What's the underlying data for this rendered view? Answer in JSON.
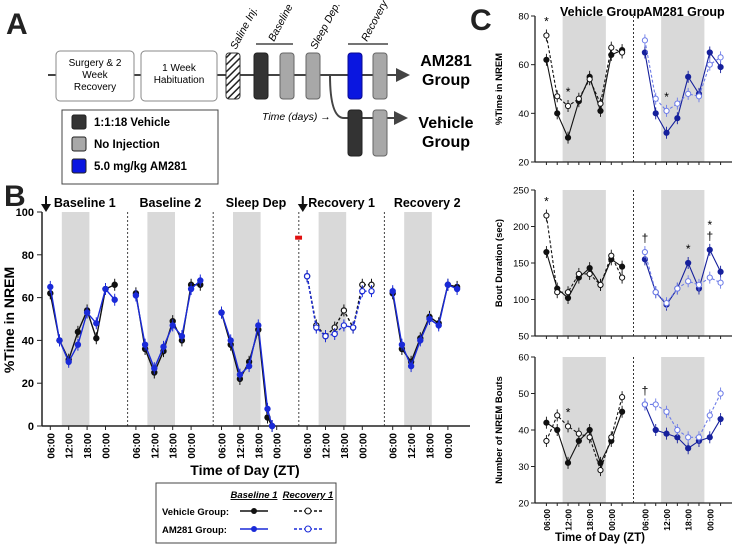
{
  "figure": {
    "panel_a": {
      "letter": "A",
      "boxes": [
        "Surgery & 2 Week Recovery",
        "1 Week Habituation"
      ],
      "labels": {
        "saline": "Saline Inj.",
        "baseline": "Baseline",
        "sleep_dep": "Sleep Dep.",
        "recovery": "Recovery"
      },
      "time_label": "Time (days) →",
      "groups": [
        "AM281 Group",
        "Vehicle Group"
      ],
      "legend": [
        {
          "label": "1:1:18 Vehicle",
          "color": "#333333"
        },
        {
          "label": "No Injection",
          "color": "#a8a8a8"
        },
        {
          "label": "5.0 mg/kg AM281",
          "color": "#0a16e0"
        }
      ]
    },
    "panel_b": {
      "letter": "B"
    },
    "panel_c": {
      "letter": "C"
    },
    "legend_b": {
      "col1": "Baseline 1",
      "col2": "Recovery 1",
      "rows": [
        "Vehicle Group:",
        "AM281 Group:"
      ]
    }
  },
  "chart_data": [
    {
      "id": "B",
      "type": "line",
      "ylabel": "%Time in NREM",
      "xlabel": "Time of Day (ZT)",
      "ylim": [
        0,
        100
      ],
      "yticks": [
        0,
        20,
        40,
        60,
        80,
        100
      ],
      "xtick_labels": [
        "06:00",
        "12:00",
        "18:00",
        "00:00"
      ],
      "dark_period": "12:00–00:00",
      "sleep_dep_marker": "06:00",
      "x_hours": [
        0,
        2,
        4,
        6,
        8,
        10,
        12,
        14,
        16,
        18,
        20
      ],
      "panels": [
        {
          "title": "Baseline 1",
          "vehicle": [
            62,
            40,
            31,
            44,
            54,
            41,
            64,
            66
          ],
          "am281": [
            65,
            40,
            30,
            38,
            53,
            48,
            64,
            59
          ],
          "vehicle_x": [
            0,
            2,
            4,
            6,
            8,
            10,
            12,
            14
          ],
          "am281_x": [
            0,
            2,
            4,
            6,
            8,
            10,
            12,
            14
          ]
        },
        {
          "title": "Baseline 2",
          "vehicle": [
            62,
            36,
            25,
            35,
            49,
            40,
            66,
            66
          ],
          "am281": [
            61,
            38,
            27,
            37,
            47,
            42,
            64,
            68
          ],
          "vehicle_x": [
            0,
            2,
            4,
            6,
            8,
            10,
            12,
            14
          ],
          "am281_x": [
            0,
            2,
            4,
            6,
            8,
            10,
            12,
            14
          ]
        },
        {
          "title": "Sleep Dep",
          "vehicle": [
            53,
            38,
            22,
            30,
            45,
            4,
            0
          ],
          "am281": [
            53,
            40,
            24,
            28,
            47,
            8,
            0
          ],
          "vehicle_x": [
            0,
            2,
            4,
            6,
            8,
            10,
            11
          ],
          "am281_x": [
            0,
            2,
            4,
            6,
            8,
            10,
            11
          ]
        },
        {
          "title": "Recovery 1",
          "vehicle": [
            70,
            47,
            42,
            46,
            54,
            46,
            66,
            66
          ],
          "am281": [
            70,
            46,
            42,
            43,
            47,
            46,
            63,
            63
          ],
          "vehicle_x": [
            0,
            2,
            4,
            6,
            8,
            10,
            12,
            14
          ],
          "am281_x": [
            0,
            2,
            4,
            6,
            8,
            10,
            12,
            14
          ]
        },
        {
          "title": "Recovery 2",
          "vehicle": [
            62,
            36,
            30,
            41,
            51,
            48,
            66,
            65
          ],
          "am281": [
            63,
            38,
            28,
            40,
            50,
            47,
            66,
            64
          ],
          "vehicle_x": [
            0,
            2,
            4,
            6,
            8,
            10,
            12,
            14
          ],
          "am281_x": [
            0,
            2,
            4,
            6,
            8,
            10,
            12,
            14
          ]
        }
      ]
    },
    {
      "id": "C",
      "type": "line",
      "xlabel": "Time of Day (ZT)",
      "xtick_labels": [
        "06:00",
        "12:00",
        "18:00",
        "00:00",
        "06:00",
        "12:00",
        "18:00",
        "00:00"
      ],
      "group_titles": [
        "Vehicle Group",
        "AM281 Group"
      ],
      "subplots": [
        {
          "ylabel": "%Time in NREM",
          "ylim": [
            20,
            80
          ],
          "yticks": [
            20,
            40,
            60,
            80
          ],
          "vehicle_baseline": [
            62,
            40,
            30,
            45,
            55,
            41,
            64,
            66
          ],
          "vehicle_recovery": [
            72,
            47,
            43,
            46,
            54,
            44,
            67,
            65
          ],
          "am281_baseline": [
            65,
            40,
            32,
            38,
            55,
            48,
            65,
            59
          ],
          "am281_recovery": [
            70,
            46,
            41,
            44,
            48,
            47,
            60,
            63
          ],
          "annotations": [
            {
              "text": "*",
              "group": "vehicle",
              "index": 0
            },
            {
              "text": "*",
              "group": "vehicle",
              "index": 2
            },
            {
              "text": "*",
              "group": "am281",
              "index": 2
            }
          ]
        },
        {
          "ylabel": "Bout Duration (sec)",
          "ylim": [
            50,
            250
          ],
          "yticks": [
            50,
            100,
            150,
            200,
            250
          ],
          "vehicle_baseline": [
            165,
            115,
            102,
            130,
            143,
            120,
            155,
            145
          ],
          "vehicle_recovery": [
            215,
            110,
            110,
            135,
            135,
            120,
            160,
            130
          ],
          "am281_baseline": [
            155,
            110,
            93,
            115,
            150,
            115,
            168,
            138
          ],
          "am281_recovery": [
            165,
            110,
            95,
            115,
            125,
            120,
            130,
            123
          ],
          "annotations": [
            {
              "text": "*",
              "group": "vehicle",
              "index": 0
            },
            {
              "text": "†",
              "group": "am281",
              "index": 0
            },
            {
              "text": "*",
              "group": "am281",
              "index": 4
            },
            {
              "text": "†",
              "group": "am281",
              "index": 6
            },
            {
              "text": "*",
              "group": "am281",
              "index": 6
            }
          ]
        },
        {
          "ylabel": "Number of NREM Bouts",
          "ylim": [
            20,
            60
          ],
          "yticks": [
            20,
            30,
            40,
            50,
            60
          ],
          "vehicle_baseline": [
            42,
            40,
            31,
            37,
            40,
            31,
            37,
            45
          ],
          "vehicle_recovery": [
            37,
            44,
            41,
            39,
            38,
            29,
            38,
            49
          ],
          "am281_baseline": [
            47,
            40,
            39,
            38,
            35,
            37,
            38,
            43
          ],
          "am281_recovery": [
            47,
            47,
            45,
            40,
            38,
            38,
            44,
            50
          ],
          "annotations": [
            {
              "text": "*",
              "group": "vehicle",
              "index": 2
            },
            {
              "text": "†",
              "group": "am281",
              "index": 0
            }
          ]
        }
      ]
    }
  ]
}
